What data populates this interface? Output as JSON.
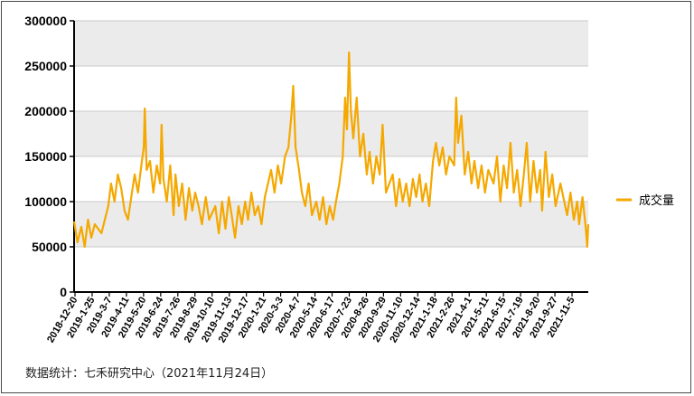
{
  "chart_data": {
    "type": "line",
    "title": "",
    "xlabel": "",
    "ylabel": "",
    "ylim": [
      0,
      300000
    ],
    "yticks": [
      0,
      50000,
      100000,
      150000,
      200000,
      250000,
      300000
    ],
    "ytick_labels": [
      "0",
      "50000",
      "100000",
      "150000",
      "200000",
      "250000",
      "300000"
    ],
    "grid": "horizontal alternating bands",
    "legend_position": "right",
    "x_start": "2018-12-20",
    "x_end": "2021-11-24",
    "x_tick_labels": [
      "2018-12-20",
      "2019-1-25",
      "2019-3-7",
      "2019-4-11",
      "2019-5-20",
      "2019-6-24",
      "2019-7-26",
      "2019-8-29",
      "2019-10-10",
      "2019-11-13",
      "2019-12-17",
      "2020-1-21",
      "2020-3-3",
      "2020-4-7",
      "2020-5-14",
      "2020-6-17",
      "2020-7-23",
      "2020-8-26",
      "2020-9-29",
      "2020-11-10",
      "2020-12-14",
      "2021-1-18",
      "2021-2-26",
      "2021-4-1",
      "2021-5-11",
      "2021-6-15",
      "2021-7-19",
      "2021-8-20",
      "2021-9-27",
      "2021-11-5"
    ],
    "series": [
      {
        "name": "成交量",
        "color": "#F5A800",
        "points": [
          [
            "2018-12-20",
            78000
          ],
          [
            "2018-12-27",
            55000
          ],
          [
            "2019-1-4",
            72000
          ],
          [
            "2019-1-11",
            50000
          ],
          [
            "2019-1-18",
            80000
          ],
          [
            "2019-1-25",
            60000
          ],
          [
            "2019-2-1",
            75000
          ],
          [
            "2019-2-15",
            65000
          ],
          [
            "2019-2-22",
            80000
          ],
          [
            "2019-3-1",
            95000
          ],
          [
            "2019-3-7",
            120000
          ],
          [
            "2019-3-14",
            100000
          ],
          [
            "2019-3-21",
            130000
          ],
          [
            "2019-3-28",
            115000
          ],
          [
            "2019-4-4",
            90000
          ],
          [
            "2019-4-11",
            80000
          ],
          [
            "2019-4-18",
            105000
          ],
          [
            "2019-4-25",
            130000
          ],
          [
            "2019-5-2",
            110000
          ],
          [
            "2019-5-9",
            140000
          ],
          [
            "2019-5-14",
            160000
          ],
          [
            "2019-5-16",
            203000
          ],
          [
            "2019-5-20",
            135000
          ],
          [
            "2019-5-27",
            145000
          ],
          [
            "2019-6-3",
            110000
          ],
          [
            "2019-6-10",
            140000
          ],
          [
            "2019-6-17",
            120000
          ],
          [
            "2019-6-20",
            185000
          ],
          [
            "2019-6-24",
            125000
          ],
          [
            "2019-7-1",
            100000
          ],
          [
            "2019-7-8",
            140000
          ],
          [
            "2019-7-15",
            85000
          ],
          [
            "2019-7-19",
            130000
          ],
          [
            "2019-7-26",
            95000
          ],
          [
            "2019-8-2",
            120000
          ],
          [
            "2019-8-9",
            80000
          ],
          [
            "2019-8-16",
            115000
          ],
          [
            "2019-8-23",
            90000
          ],
          [
            "2019-8-29",
            110000
          ],
          [
            "2019-9-5",
            95000
          ],
          [
            "2019-9-12",
            75000
          ],
          [
            "2019-9-20",
            105000
          ],
          [
            "2019-9-27",
            80000
          ],
          [
            "2019-10-10",
            95000
          ],
          [
            "2019-10-17",
            65000
          ],
          [
            "2019-10-24",
            100000
          ],
          [
            "2019-10-31",
            70000
          ],
          [
            "2019-11-7",
            105000
          ],
          [
            "2019-11-13",
            85000
          ],
          [
            "2019-11-20",
            60000
          ],
          [
            "2019-11-27",
            95000
          ],
          [
            "2019-12-4",
            75000
          ],
          [
            "2019-12-11",
            100000
          ],
          [
            "2019-12-17",
            80000
          ],
          [
            "2019-12-24",
            110000
          ],
          [
            "2019-12-31",
            85000
          ],
          [
            "2020-1-7",
            95000
          ],
          [
            "2020-1-14",
            75000
          ],
          [
            "2020-1-21",
            105000
          ],
          [
            "2020-2-3",
            135000
          ],
          [
            "2020-2-10",
            110000
          ],
          [
            "2020-2-17",
            140000
          ],
          [
            "2020-2-24",
            120000
          ],
          [
            "2020-3-3",
            150000
          ],
          [
            "2020-3-10",
            160000
          ],
          [
            "2020-3-16",
            195000
          ],
          [
            "2020-3-20",
            228000
          ],
          [
            "2020-3-25",
            160000
          ],
          [
            "2020-4-1",
            135000
          ],
          [
            "2020-4-7",
            110000
          ],
          [
            "2020-4-14",
            95000
          ],
          [
            "2020-4-21",
            120000
          ],
          [
            "2020-4-28",
            85000
          ],
          [
            "2020-5-7",
            100000
          ],
          [
            "2020-5-14",
            80000
          ],
          [
            "2020-5-21",
            105000
          ],
          [
            "2020-5-28",
            75000
          ],
          [
            "2020-6-4",
            95000
          ],
          [
            "2020-6-11",
            80000
          ],
          [
            "2020-6-17",
            100000
          ],
          [
            "2020-6-24",
            120000
          ],
          [
            "2020-7-1",
            150000
          ],
          [
            "2020-7-6",
            215000
          ],
          [
            "2020-7-10",
            180000
          ],
          [
            "2020-7-14",
            265000
          ],
          [
            "2020-7-18",
            200000
          ],
          [
            "2020-7-23",
            170000
          ],
          [
            "2020-7-30",
            215000
          ],
          [
            "2020-8-6",
            150000
          ],
          [
            "2020-8-13",
            175000
          ],
          [
            "2020-8-20",
            130000
          ],
          [
            "2020-8-26",
            155000
          ],
          [
            "2020-9-2",
            120000
          ],
          [
            "2020-9-9",
            150000
          ],
          [
            "2020-9-16",
            130000
          ],
          [
            "2020-9-22",
            185000
          ],
          [
            "2020-9-29",
            110000
          ],
          [
            "2020-10-13",
            130000
          ],
          [
            "2020-10-20",
            95000
          ],
          [
            "2020-10-27",
            125000
          ],
          [
            "2020-11-3",
            100000
          ],
          [
            "2020-11-10",
            120000
          ],
          [
            "2020-11-17",
            95000
          ],
          [
            "2020-11-24",
            125000
          ],
          [
            "2020-12-1",
            105000
          ],
          [
            "2020-12-8",
            130000
          ],
          [
            "2020-12-14",
            100000
          ],
          [
            "2020-12-21",
            120000
          ],
          [
            "2020-12-28",
            95000
          ],
          [
            "2021-1-5",
            145000
          ],
          [
            "2021-1-11",
            165000
          ],
          [
            "2021-1-18",
            140000
          ],
          [
            "2021-1-25",
            160000
          ],
          [
            "2021-2-1",
            130000
          ],
          [
            "2021-2-8",
            150000
          ],
          [
            "2021-2-18",
            140000
          ],
          [
            "2021-2-22",
            215000
          ],
          [
            "2021-2-26",
            165000
          ],
          [
            "2021-3-5",
            195000
          ],
          [
            "2021-3-12",
            130000
          ],
          [
            "2021-3-19",
            155000
          ],
          [
            "2021-3-26",
            120000
          ],
          [
            "2021-4-1",
            145000
          ],
          [
            "2021-4-9",
            115000
          ],
          [
            "2021-4-16",
            140000
          ],
          [
            "2021-4-23",
            110000
          ],
          [
            "2021-4-30",
            135000
          ],
          [
            "2021-5-11",
            120000
          ],
          [
            "2021-5-18",
            150000
          ],
          [
            "2021-5-25",
            100000
          ],
          [
            "2021-6-1",
            140000
          ],
          [
            "2021-6-8",
            115000
          ],
          [
            "2021-6-15",
            165000
          ],
          [
            "2021-6-22",
            110000
          ],
          [
            "2021-6-29",
            135000
          ],
          [
            "2021-7-6",
            95000
          ],
          [
            "2021-7-13",
            130000
          ],
          [
            "2021-7-19",
            165000
          ],
          [
            "2021-7-26",
            100000
          ],
          [
            "2021-8-2",
            145000
          ],
          [
            "2021-8-9",
            110000
          ],
          [
            "2021-8-16",
            135000
          ],
          [
            "2021-8-20",
            90000
          ],
          [
            "2021-8-27",
            155000
          ],
          [
            "2021-9-3",
            105000
          ],
          [
            "2021-9-10",
            130000
          ],
          [
            "2021-9-17",
            95000
          ],
          [
            "2021-9-27",
            120000
          ],
          [
            "2021-10-11",
            85000
          ],
          [
            "2021-10-18",
            110000
          ],
          [
            "2021-10-25",
            80000
          ],
          [
            "2021-11-1",
            100000
          ],
          [
            "2021-11-5",
            75000
          ],
          [
            "2021-11-12",
            105000
          ],
          [
            "2021-11-19",
            70000
          ],
          [
            "2021-11-22",
            50000
          ],
          [
            "2021-11-24",
            75000
          ]
        ]
      }
    ]
  },
  "footer": {
    "source": "数据统计：七禾研究中心（2021年11月24日）"
  }
}
